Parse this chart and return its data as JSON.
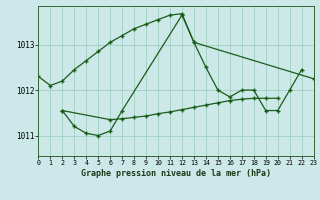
{
  "title": "Graphe pression niveau de la mer (hPa)",
  "bg_color": "#cce8e8",
  "grid_color": "#99ccbb",
  "line_color": "#1a5c1a",
  "xlim": [
    0,
    23
  ],
  "ylim": [
    1010.55,
    1013.85
  ],
  "yticks": [
    1011,
    1012,
    1013
  ],
  "xticks": [
    0,
    1,
    2,
    3,
    4,
    5,
    6,
    7,
    8,
    9,
    10,
    11,
    12,
    13,
    14,
    15,
    16,
    17,
    18,
    19,
    20,
    21,
    22,
    23
  ],
  "series1_x": [
    0,
    1,
    2,
    3,
    4,
    5,
    6,
    7,
    8,
    9,
    10,
    11,
    12,
    13,
    23
  ],
  "series1_y": [
    1012.3,
    1012.1,
    1012.2,
    1012.45,
    1012.65,
    1012.85,
    1013.05,
    1013.2,
    1013.35,
    1013.45,
    1013.55,
    1013.65,
    1013.68,
    1013.05,
    1012.25
  ],
  "series2_x": [
    2,
    3,
    4,
    5,
    6,
    7,
    12,
    13,
    14,
    15,
    16,
    17,
    18,
    19,
    20,
    21,
    22
  ],
  "series2_y": [
    1011.55,
    1011.2,
    1011.05,
    1011.0,
    1011.1,
    1011.55,
    1013.65,
    1013.05,
    1012.5,
    1012.0,
    1011.85,
    1012.0,
    1012.0,
    1011.55,
    1011.55,
    1012.0,
    1012.45
  ],
  "series3_x": [
    2,
    6,
    7,
    8,
    9,
    10,
    11,
    12,
    13,
    14,
    15,
    16,
    17,
    18,
    19,
    20
  ],
  "series3_y": [
    1011.55,
    1011.35,
    1011.37,
    1011.4,
    1011.43,
    1011.48,
    1011.52,
    1011.57,
    1011.62,
    1011.67,
    1011.72,
    1011.77,
    1011.8,
    1011.82,
    1011.82,
    1011.82
  ]
}
